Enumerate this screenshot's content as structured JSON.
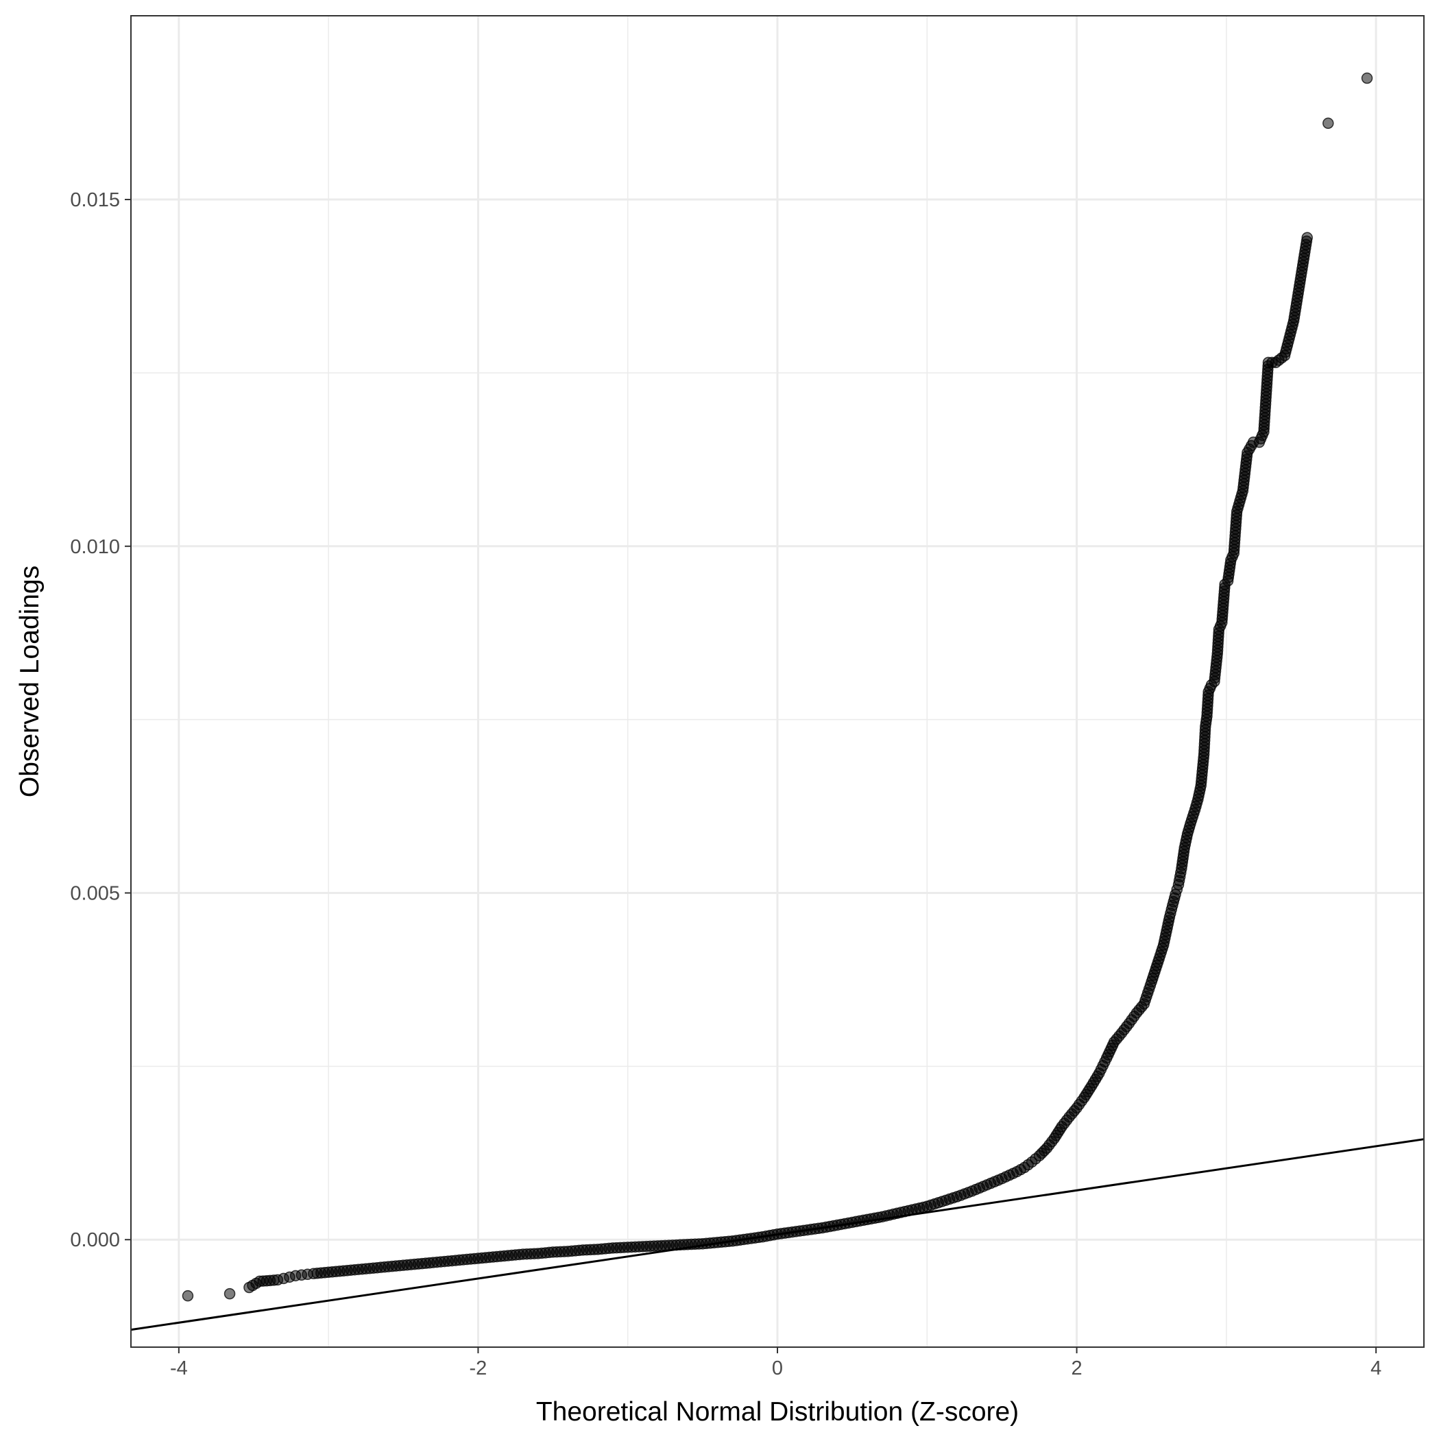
{
  "chart_data": {
    "type": "scatter",
    "title": "",
    "xlabel": "Theoretical Normal Distribution (Z-score)",
    "ylabel": "Observed Loadings",
    "xlim": [
      -4.32,
      4.32
    ],
    "ylim": [
      -0.00155,
      0.01765
    ],
    "x_ticks": [
      -4,
      -2,
      0,
      2,
      4
    ],
    "x_tick_labels": [
      "-4",
      "-2",
      "0",
      "2",
      "4"
    ],
    "y_ticks": [
      0.0,
      0.005,
      0.01,
      0.015
    ],
    "y_tick_labels": [
      "0.000",
      "0.005",
      "0.010",
      "0.015"
    ],
    "x_minor_ticks": [
      -3,
      -1,
      1,
      3
    ],
    "y_minor_ticks": [
      0.0025,
      0.0075,
      0.0125
    ],
    "grid": true,
    "legend": "none",
    "point_color": "#000000",
    "point_opacity": 0.5,
    "reference_line": {
      "slope": 0.000318,
      "intercept": 7.5e-05
    },
    "points": [
      [
        -3.94,
        -0.00081
      ],
      [
        -3.66,
        -0.00078
      ],
      [
        -3.53,
        -0.00069
      ],
      [
        -3.46,
        -0.0006
      ],
      [
        -3.39,
        -0.00059
      ],
      [
        -3.34,
        -0.00058
      ],
      [
        -3.3,
        -0.00056
      ],
      [
        -3.26,
        -0.00054
      ],
      [
        -3.22,
        -0.00052
      ],
      [
        -3.18,
        -0.00051
      ],
      [
        -3.14,
        -0.0005
      ],
      [
        -3.1,
        -0.00049
      ],
      [
        -3.05,
        -0.00048
      ],
      [
        -3.0,
        -0.00047
      ],
      [
        -2.9,
        -0.00045
      ],
      [
        -2.8,
        -0.00043
      ],
      [
        -2.7,
        -0.00041
      ],
      [
        -2.6,
        -0.00039
      ],
      [
        -2.5,
        -0.00037
      ],
      [
        -2.4,
        -0.00035
      ],
      [
        -2.3,
        -0.00033
      ],
      [
        -2.2,
        -0.00031
      ],
      [
        -2.1,
        -0.00029
      ],
      [
        -2.0,
        -0.00027
      ],
      [
        -1.9,
        -0.00025
      ],
      [
        -1.8,
        -0.00023
      ],
      [
        -1.7,
        -0.00021
      ],
      [
        -1.6,
        -0.0002
      ],
      [
        -1.5,
        -0.00018
      ],
      [
        -1.4,
        -0.00017
      ],
      [
        -1.3,
        -0.00015
      ],
      [
        -1.2,
        -0.00014
      ],
      [
        -1.1,
        -0.00012
      ],
      [
        -1.0,
        -0.00011
      ],
      [
        -0.9,
        -0.0001
      ],
      [
        -0.8,
        -9e-05
      ],
      [
        -0.7,
        -8e-05
      ],
      [
        -0.6,
        -7e-05
      ],
      [
        -0.5,
        -6e-05
      ],
      [
        -0.4,
        -4e-05
      ],
      [
        -0.3,
        -2e-05
      ],
      [
        -0.2,
        1e-05
      ],
      [
        -0.1,
        4e-05
      ],
      [
        0.0,
        8e-05
      ],
      [
        0.1,
        0.00011
      ],
      [
        0.2,
        0.00014
      ],
      [
        0.3,
        0.00017
      ],
      [
        0.4,
        0.00021
      ],
      [
        0.5,
        0.00025
      ],
      [
        0.6,
        0.00029
      ],
      [
        0.7,
        0.00033
      ],
      [
        0.8,
        0.00038
      ],
      [
        0.9,
        0.00043
      ],
      [
        1.0,
        0.00048
      ],
      [
        1.1,
        0.00055
      ],
      [
        1.2,
        0.00062
      ],
      [
        1.3,
        0.0007
      ],
      [
        1.4,
        0.00079
      ],
      [
        1.5,
        0.00088
      ],
      [
        1.55,
        0.00093
      ],
      [
        1.6,
        0.00098
      ],
      [
        1.65,
        0.00104
      ],
      [
        1.7,
        0.00112
      ],
      [
        1.75,
        0.00121
      ],
      [
        1.8,
        0.00132
      ],
      [
        1.85,
        0.00146
      ],
      [
        1.9,
        0.00163
      ],
      [
        1.95,
        0.00177
      ],
      [
        2.0,
        0.0019
      ],
      [
        2.05,
        0.00205
      ],
      [
        2.1,
        0.00222
      ],
      [
        2.15,
        0.0024
      ],
      [
        2.2,
        0.00262
      ],
      [
        2.25,
        0.00285
      ],
      [
        2.3,
        0.00298
      ],
      [
        2.35,
        0.00312
      ],
      [
        2.4,
        0.00327
      ],
      [
        2.45,
        0.0034
      ],
      [
        2.5,
        0.00372
      ],
      [
        2.55,
        0.00405
      ],
      [
        2.58,
        0.00425
      ],
      [
        2.6,
        0.00445
      ],
      [
        2.62,
        0.00465
      ],
      [
        2.64,
        0.00482
      ],
      [
        2.66,
        0.00498
      ],
      [
        2.68,
        0.00512
      ],
      [
        2.7,
        0.00535
      ],
      [
        2.72,
        0.00565
      ],
      [
        2.74,
        0.00585
      ],
      [
        2.76,
        0.006
      ],
      [
        2.79,
        0.0062
      ],
      [
        2.81,
        0.00635
      ],
      [
        2.83,
        0.00655
      ],
      [
        2.85,
        0.007
      ],
      [
        2.86,
        0.0074
      ],
      [
        2.87,
        0.00755
      ],
      [
        2.88,
        0.0079
      ],
      [
        2.9,
        0.008
      ],
      [
        2.92,
        0.00805
      ],
      [
        2.94,
        0.00845
      ],
      [
        2.95,
        0.0088
      ],
      [
        2.97,
        0.0089
      ],
      [
        2.99,
        0.00945
      ],
      [
        3.01,
        0.0095
      ],
      [
        3.03,
        0.0098
      ],
      [
        3.05,
        0.0099
      ],
      [
        3.07,
        0.0105
      ],
      [
        3.09,
        0.01065
      ],
      [
        3.11,
        0.0108
      ],
      [
        3.14,
        0.01135
      ],
      [
        3.18,
        0.0115
      ],
      [
        3.22,
        0.0115
      ],
      [
        3.25,
        0.01165
      ],
      [
        3.28,
        0.01265
      ],
      [
        3.33,
        0.01265
      ],
      [
        3.39,
        0.01275
      ],
      [
        3.45,
        0.01325
      ],
      [
        3.54,
        0.01445
      ],
      [
        3.68,
        0.0161
      ],
      [
        3.94,
        0.01675
      ]
    ]
  }
}
